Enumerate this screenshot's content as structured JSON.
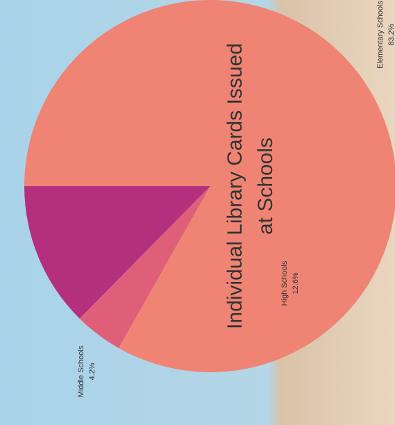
{
  "chart_data": {
    "type": "pie",
    "title": "Individual Library Cards Issued at Schools",
    "categories": [
      "High Schools",
      "Middle Schools",
      "Elementary Schools"
    ],
    "values": [
      12.6,
      4.2,
      83.2
    ],
    "value_labels": [
      "12.6%",
      "4.2%",
      "83.2%"
    ],
    "colors": [
      "#b5307c",
      "#df5f7a",
      "#ef8474"
    ]
  }
}
